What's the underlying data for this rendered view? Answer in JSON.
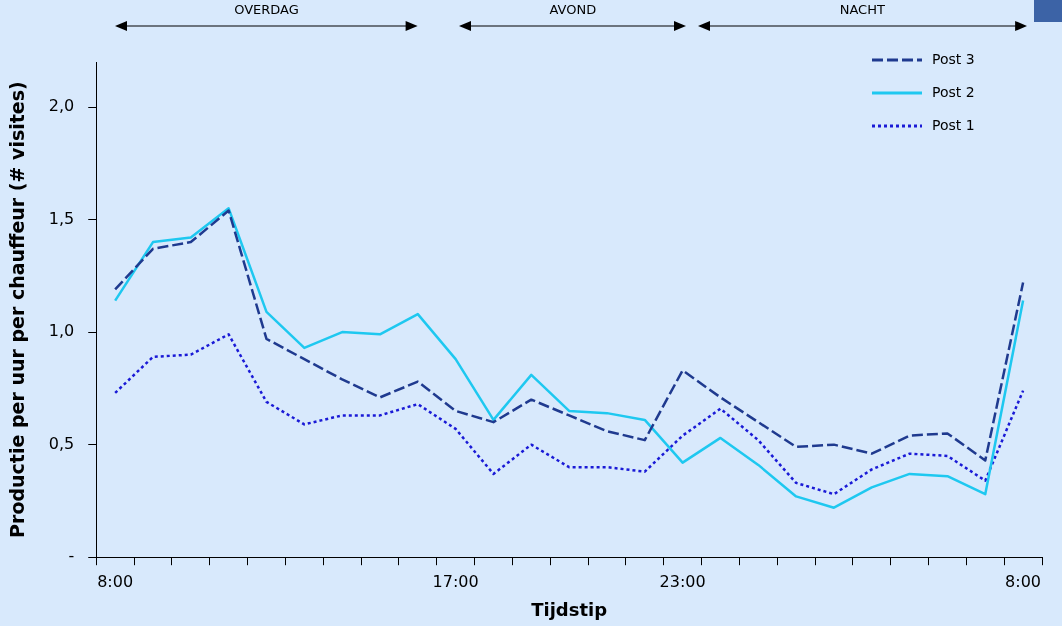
{
  "chart_data": {
    "type": "line",
    "xlabel": "Tijdstip",
    "ylabel": "Productie per uur per chauffeur (# visites)",
    "categories": [
      "8:00",
      null,
      null,
      null,
      null,
      null,
      null,
      null,
      null,
      "17:00",
      null,
      null,
      null,
      null,
      null,
      "23:00",
      null,
      null,
      null,
      null,
      null,
      null,
      null,
      null,
      "8:00"
    ],
    "ylim": [
      0,
      2.2
    ],
    "yticks": [
      {
        "value": 0,
        "label": "-"
      },
      {
        "value": 0.5,
        "label": "0,5"
      },
      {
        "value": 1,
        "label": "1,0"
      },
      {
        "value": 1.5,
        "label": "1,5"
      },
      {
        "value": 2,
        "label": "2,0"
      }
    ],
    "legend": "top right",
    "marker": "none",
    "annotations": [
      "OVERDAG",
      "AVOND",
      "NACHT"
    ],
    "series": [
      {
        "name": "Post 3",
        "color": "#1f3a8f",
        "line_style": "dashed",
        "values": [
          1.19,
          1.37,
          1.4,
          1.54,
          0.97,
          0.88,
          0.79,
          0.71,
          0.78,
          0.65,
          0.6,
          0.7,
          0.63,
          0.56,
          0.52,
          0.83,
          0.71,
          0.6,
          0.49,
          0.5,
          0.46,
          0.54,
          0.55,
          0.43,
          1.22
        ]
      },
      {
        "name": "Post 2",
        "color": "#1ec8f0",
        "line_style": "solid",
        "values": [
          1.14,
          1.4,
          1.42,
          1.55,
          1.09,
          0.93,
          1.0,
          0.99,
          1.08,
          0.88,
          0.61,
          0.81,
          0.65,
          0.64,
          0.61,
          0.42,
          0.53,
          0.41,
          0.27,
          0.22,
          0.31,
          0.37,
          0.36,
          0.28,
          1.14
        ]
      },
      {
        "name": "Post 1",
        "color": "#1a1ad6",
        "line_style": "dotted",
        "values": [
          0.73,
          0.89,
          0.9,
          0.99,
          0.69,
          0.59,
          0.63,
          0.63,
          0.68,
          0.57,
          0.37,
          0.5,
          0.4,
          0.4,
          0.38,
          0.54,
          0.66,
          0.52,
          0.33,
          0.28,
          0.39,
          0.46,
          0.45,
          0.34,
          0.74
        ]
      }
    ]
  }
}
